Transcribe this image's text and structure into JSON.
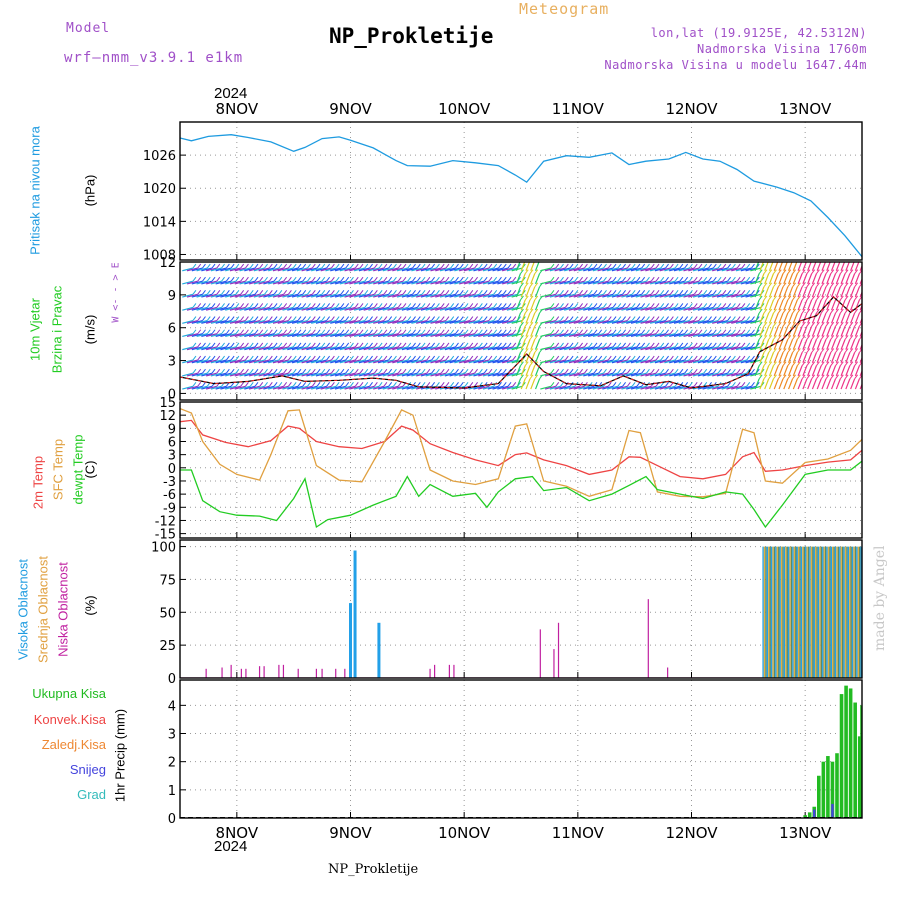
{
  "header": {
    "model_label": "Model",
    "model_name": "wrf–nmm_v3.9.1 e1km",
    "title": "NP_Prokletije",
    "meteogram": "Meteogram",
    "coords": "lon,lat (19.9125E, 42.5312N)",
    "elevation": "Nadmorska Visina 1760m",
    "model_elevation": "Nadmorska Visina u modelu 1647.44m",
    "year_top": "2024",
    "year_bottom": "2024",
    "footer": "NP_Prokletije",
    "watermark": "made by Angel"
  },
  "colors": {
    "pressure": "#1e9be0",
    "t2m": "#ee4444",
    "sfc": "#e0a040",
    "dewpt": "#22cc22",
    "high_cloud": "#22a0e8",
    "mid_cloud": "#e0b040",
    "low_cloud": "#c020a0",
    "total_precip": "#22bb22",
    "conv_precip": "#ee4444",
    "ice_precip": "#ee8833",
    "snow": "#4444dd",
    "hail": "#33bbbb",
    "label_purple": "#a050c8"
  },
  "chart_data": {
    "type": "meteogram",
    "time_axis": {
      "start_day": 7.5,
      "end_day": 13.5,
      "tick_labels": [
        "8NOV",
        "9NOV",
        "10NOV",
        "11NOV",
        "12NOV",
        "13NOV"
      ],
      "tick_days": [
        8,
        9,
        10,
        11,
        12,
        13
      ]
    },
    "panels": [
      {
        "id": "pressure",
        "type": "line",
        "ylabel": "Pritisak na nivou mora",
        "unit": "(hPa)",
        "ylim": [
          1007,
          1032
        ],
        "yticks": [
          1008,
          1014,
          1020,
          1026
        ],
        "series": [
          {
            "color_key": "pressure",
            "points": [
              [
                7.5,
                1029.1
              ],
              [
                7.6,
                1028.6
              ],
              [
                7.75,
                1029.4
              ],
              [
                7.95,
                1029.7
              ],
              [
                8.1,
                1029.2
              ],
              [
                8.3,
                1028.4
              ],
              [
                8.5,
                1026.7
              ],
              [
                8.6,
                1027.4
              ],
              [
                8.75,
                1029.0
              ],
              [
                8.9,
                1029.3
              ],
              [
                9.0,
                1028.7
              ],
              [
                9.2,
                1027.3
              ],
              [
                9.4,
                1025.0
              ],
              [
                9.5,
                1024.1
              ],
              [
                9.7,
                1024.0
              ],
              [
                9.9,
                1025.0
              ],
              [
                10.1,
                1024.6
              ],
              [
                10.3,
                1024.1
              ],
              [
                10.45,
                1022.4
              ],
              [
                10.55,
                1021.1
              ],
              [
                10.7,
                1024.9
              ],
              [
                10.9,
                1025.9
              ],
              [
                11.1,
                1025.6
              ],
              [
                11.3,
                1026.4
              ],
              [
                11.45,
                1024.3
              ],
              [
                11.6,
                1024.9
              ],
              [
                11.8,
                1025.3
              ],
              [
                11.95,
                1026.5
              ],
              [
                12.1,
                1025.3
              ],
              [
                12.25,
                1024.9
              ],
              [
                12.4,
                1023.4
              ],
              [
                12.55,
                1021.3
              ],
              [
                12.75,
                1020.2
              ],
              [
                12.9,
                1019.2
              ],
              [
                13.05,
                1017.7
              ],
              [
                13.2,
                1014.7
              ],
              [
                13.35,
                1011.4
              ],
              [
                13.5,
                1007.6
              ]
            ]
          }
        ]
      },
      {
        "id": "wind",
        "type": "barbs",
        "ylabel": "10m Vjetar",
        "ylabel2": "Brzina i Pravac",
        "unit": "(m/s)",
        "ylim": [
          -0.6,
          12
        ],
        "yticks": [
          0,
          3,
          6,
          9,
          12
        ],
        "compass": "W <- - > E",
        "speed": [
          [
            7.5,
            1.5
          ],
          [
            7.8,
            0.9
          ],
          [
            8.1,
            1.1
          ],
          [
            8.4,
            1.6
          ],
          [
            8.6,
            1.1
          ],
          [
            8.9,
            1.2
          ],
          [
            9.2,
            1.4
          ],
          [
            9.4,
            1.2
          ],
          [
            9.6,
            0.6
          ],
          [
            10.0,
            0.5
          ],
          [
            10.3,
            0.9
          ],
          [
            10.45,
            2.5
          ],
          [
            10.55,
            3.6
          ],
          [
            10.7,
            2.0
          ],
          [
            10.9,
            0.9
          ],
          [
            11.2,
            0.7
          ],
          [
            11.4,
            1.6
          ],
          [
            11.6,
            0.8
          ],
          [
            11.8,
            1.1
          ],
          [
            12.0,
            0.5
          ],
          [
            12.3,
            0.9
          ],
          [
            12.5,
            1.8
          ],
          [
            12.6,
            3.8
          ],
          [
            12.8,
            4.9
          ],
          [
            12.95,
            6.6
          ],
          [
            13.1,
            7.1
          ],
          [
            13.25,
            8.8
          ],
          [
            13.4,
            7.4
          ],
          [
            13.5,
            8.2
          ]
        ]
      },
      {
        "id": "temperature",
        "type": "line",
        "ylabel": "2m Temp",
        "ylabel2": "SFC Temp",
        "ylabel3": "dewpt Temp",
        "unit": "(C)",
        "ylim": [
          -16,
          15
        ],
        "yticks": [
          -15,
          -12,
          -9,
          -6,
          -3,
          0,
          3,
          6,
          9,
          12,
          15
        ],
        "series": [
          {
            "name": "2m Temp",
            "color_key": "t2m",
            "points": [
              [
                7.5,
                10.5
              ],
              [
                7.6,
                10.8
              ],
              [
                7.7,
                7.5
              ],
              [
                7.9,
                5.8
              ],
              [
                8.1,
                4.8
              ],
              [
                8.3,
                6.2
              ],
              [
                8.45,
                9.5
              ],
              [
                8.55,
                9.0
              ],
              [
                8.7,
                6.0
              ],
              [
                8.9,
                4.8
              ],
              [
                9.1,
                4.4
              ],
              [
                9.3,
                6.0
              ],
              [
                9.45,
                9.5
              ],
              [
                9.55,
                8.6
              ],
              [
                9.7,
                5.5
              ],
              [
                9.9,
                3.5
              ],
              [
                10.1,
                1.8
              ],
              [
                10.3,
                0.5
              ],
              [
                10.45,
                3.0
              ],
              [
                10.55,
                3.4
              ],
              [
                10.7,
                1.8
              ],
              [
                10.9,
                0.5
              ],
              [
                11.1,
                -1.5
              ],
              [
                11.3,
                -0.5
              ],
              [
                11.45,
                2.5
              ],
              [
                11.55,
                2.4
              ],
              [
                11.7,
                0.5
              ],
              [
                11.9,
                -2.0
              ],
              [
                12.1,
                -2.5
              ],
              [
                12.3,
                -1.5
              ],
              [
                12.45,
                2.5
              ],
              [
                12.55,
                3.5
              ],
              [
                12.65,
                -0.8
              ],
              [
                12.8,
                -0.5
              ],
              [
                13.0,
                0.5
              ],
              [
                13.2,
                1.3
              ],
              [
                13.4,
                1.8
              ],
              [
                13.5,
                4.0
              ]
            ]
          },
          {
            "name": "SFC Temp",
            "color_key": "sfc",
            "points": [
              [
                7.5,
                13.5
              ],
              [
                7.6,
                12.5
              ],
              [
                7.7,
                6.0
              ],
              [
                7.85,
                0.8
              ],
              [
                8.0,
                -1.5
              ],
              [
                8.2,
                -2.8
              ],
              [
                8.3,
                3.0
              ],
              [
                8.45,
                13.0
              ],
              [
                8.55,
                13.2
              ],
              [
                8.7,
                0.5
              ],
              [
                8.9,
                -2.8
              ],
              [
                9.1,
                -3.2
              ],
              [
                9.3,
                6.0
              ],
              [
                9.45,
                13.2
              ],
              [
                9.55,
                12.0
              ],
              [
                9.7,
                -0.5
              ],
              [
                9.9,
                -3.0
              ],
              [
                10.1,
                -3.8
              ],
              [
                10.3,
                -2.5
              ],
              [
                10.45,
                9.5
              ],
              [
                10.55,
                10.0
              ],
              [
                10.7,
                -3.0
              ],
              [
                10.9,
                -4.2
              ],
              [
                11.1,
                -6.5
              ],
              [
                11.3,
                -5.0
              ],
              [
                11.45,
                8.5
              ],
              [
                11.55,
                8.0
              ],
              [
                11.7,
                -5.5
              ],
              [
                11.9,
                -6.5
              ],
              [
                12.1,
                -6.6
              ],
              [
                12.3,
                -5.8
              ],
              [
                12.45,
                8.8
              ],
              [
                12.55,
                8.0
              ],
              [
                12.65,
                -3.0
              ],
              [
                12.8,
                -3.5
              ],
              [
                13.0,
                1.2
              ],
              [
                13.2,
                2.0
              ],
              [
                13.4,
                4.0
              ],
              [
                13.5,
                6.5
              ]
            ]
          },
          {
            "name": "dewpt Temp",
            "color_key": "dewpt",
            "points": [
              [
                7.5,
                -0.5
              ],
              [
                7.6,
                -0.5
              ],
              [
                7.7,
                -7.5
              ],
              [
                7.85,
                -10.0
              ],
              [
                8.0,
                -10.8
              ],
              [
                8.2,
                -11.0
              ],
              [
                8.35,
                -12.0
              ],
              [
                8.5,
                -7.0
              ],
              [
                8.6,
                -2.5
              ],
              [
                8.7,
                -13.5
              ],
              [
                8.8,
                -11.8
              ],
              [
                9.0,
                -10.8
              ],
              [
                9.2,
                -8.5
              ],
              [
                9.4,
                -6.5
              ],
              [
                9.5,
                -2.0
              ],
              [
                9.6,
                -6.5
              ],
              [
                9.7,
                -3.8
              ],
              [
                9.9,
                -6.5
              ],
              [
                10.1,
                -5.8
              ],
              [
                10.2,
                -9.0
              ],
              [
                10.3,
                -5.5
              ],
              [
                10.45,
                -2.5
              ],
              [
                10.6,
                -2.0
              ],
              [
                10.7,
                -5.2
              ],
              [
                10.9,
                -4.5
              ],
              [
                11.1,
                -7.5
              ],
              [
                11.3,
                -6.0
              ],
              [
                11.45,
                -4.0
              ],
              [
                11.6,
                -2.0
              ],
              [
                11.7,
                -5.0
              ],
              [
                11.9,
                -6.0
              ],
              [
                12.1,
                -7.0
              ],
              [
                12.3,
                -5.5
              ],
              [
                12.45,
                -6.0
              ],
              [
                12.55,
                -9.5
              ],
              [
                12.65,
                -13.5
              ],
              [
                12.8,
                -8.5
              ],
              [
                13.0,
                -1.5
              ],
              [
                13.2,
                -0.5
              ],
              [
                13.4,
                -0.5
              ],
              [
                13.5,
                1.5
              ]
            ]
          }
        ]
      },
      {
        "id": "cloud",
        "type": "bar",
        "ylabel": "Visoka Oblacnost",
        "ylabel2": "Srednja Oblacnost",
        "ylabel3": "Niska Oblacnost",
        "unit": "(%)",
        "ylim": [
          0,
          105
        ],
        "yticks": [
          0,
          25,
          50,
          75,
          100
        ],
        "high": [
          [
            9.0,
            57
          ],
          [
            9.04,
            97
          ],
          [
            9.25,
            42
          ]
        ],
        "low": [
          [
            7.73,
            7
          ],
          [
            7.87,
            8
          ],
          [
            7.95,
            10
          ],
          [
            8.04,
            7
          ],
          [
            8.08,
            7
          ],
          [
            8.2,
            9
          ],
          [
            8.24,
            9
          ],
          [
            8.37,
            10
          ],
          [
            8.41,
            10
          ],
          [
            8.54,
            7
          ],
          [
            8.7,
            7
          ],
          [
            8.75,
            7
          ],
          [
            8.87,
            7
          ],
          [
            8.95,
            7
          ],
          [
            9.7,
            7
          ],
          [
            9.74,
            10
          ],
          [
            9.87,
            10
          ],
          [
            9.91,
            10
          ],
          [
            10.67,
            37
          ],
          [
            10.79,
            22
          ],
          [
            10.83,
            42
          ],
          [
            11.62,
            60
          ],
          [
            11.79,
            8
          ]
        ],
        "overcast_start": 12.63,
        "overcast_end": 13.5,
        "overcast_value": 100
      },
      {
        "id": "precip",
        "type": "bar",
        "ylabel": "1hr Precip",
        "unit": "(mm)",
        "ylim": [
          0,
          4.9
        ],
        "yticks": [
          0,
          1,
          2,
          3,
          4
        ],
        "legend": [
          "Ukupna Kisa",
          "Konvek.Kisa",
          "Zaledj.Kisa",
          "Snijeg",
          "Grad"
        ],
        "total": [
          [
            13.0,
            0.1
          ],
          [
            13.04,
            0.2
          ],
          [
            13.08,
            0.4
          ],
          [
            13.12,
            1.5
          ],
          [
            13.16,
            2.0
          ],
          [
            13.2,
            2.2
          ],
          [
            13.24,
            2.0
          ],
          [
            13.28,
            2.3
          ],
          [
            13.32,
            4.4
          ],
          [
            13.36,
            4.7
          ],
          [
            13.4,
            4.6
          ],
          [
            13.44,
            4.1
          ],
          [
            13.48,
            2.9
          ],
          [
            13.5,
            4.0
          ]
        ],
        "snow": [
          [
            13.08,
            0.3
          ],
          [
            13.24,
            0.5
          ]
        ]
      }
    ]
  }
}
